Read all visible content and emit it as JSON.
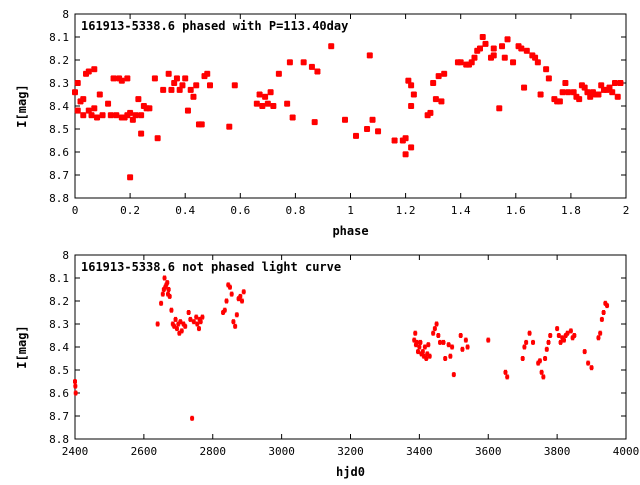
{
  "chart_data": [
    {
      "type": "scatter",
      "title": "161913-5338.6 phased with P=113.40day",
      "xlabel": "phase",
      "ylabel": "I[mag]",
      "xlim": [
        0,
        2
      ],
      "ylim": [
        8.8,
        8.0
      ],
      "y_inverted": true,
      "x_ticks": [
        "0",
        "0.2",
        "0.4",
        "0.6",
        "0.8",
        "1",
        "1.2",
        "1.4",
        "1.6",
        "1.8",
        "2"
      ],
      "y_ticks": [
        "8",
        "8.1",
        "8.2",
        "8.3",
        "8.4",
        "8.5",
        "8.6",
        "8.7",
        "8.8"
      ],
      "marker_color": "#ff0000",
      "grid": false,
      "series": [
        {
          "points": [
            [
              0.0,
              8.34
            ],
            [
              0.01,
              8.3
            ],
            [
              0.01,
              8.42
            ],
            [
              0.02,
              8.38
            ],
            [
              0.03,
              8.37
            ],
            [
              0.03,
              8.44
            ],
            [
              0.04,
              8.26
            ],
            [
              0.05,
              8.25
            ],
            [
              0.05,
              8.42
            ],
            [
              0.06,
              8.44
            ],
            [
              0.07,
              8.24
            ],
            [
              0.07,
              8.41
            ],
            [
              0.08,
              8.45
            ],
            [
              0.09,
              8.35
            ],
            [
              0.1,
              8.44
            ],
            [
              0.12,
              8.39
            ],
            [
              0.13,
              8.44
            ],
            [
              0.14,
              8.28
            ],
            [
              0.15,
              8.44
            ],
            [
              0.16,
              8.28
            ],
            [
              0.17,
              8.45
            ],
            [
              0.17,
              8.29
            ],
            [
              0.18,
              8.45
            ],
            [
              0.19,
              8.28
            ],
            [
              0.19,
              8.44
            ],
            [
              0.2,
              8.43
            ],
            [
              0.2,
              8.71
            ],
            [
              0.21,
              8.46
            ],
            [
              0.22,
              8.44
            ],
            [
              0.23,
              8.37
            ],
            [
              0.24,
              8.44
            ],
            [
              0.24,
              8.52
            ],
            [
              0.25,
              8.4
            ],
            [
              0.26,
              8.41
            ],
            [
              0.27,
              8.41
            ],
            [
              0.29,
              8.28
            ],
            [
              0.3,
              8.54
            ],
            [
              0.32,
              8.33
            ],
            [
              0.34,
              8.26
            ],
            [
              0.35,
              8.33
            ],
            [
              0.36,
              8.3
            ],
            [
              0.37,
              8.28
            ],
            [
              0.38,
              8.33
            ],
            [
              0.39,
              8.31
            ],
            [
              0.4,
              8.28
            ],
            [
              0.41,
              8.42
            ],
            [
              0.42,
              8.33
            ],
            [
              0.43,
              8.36
            ],
            [
              0.44,
              8.31
            ],
            [
              0.45,
              8.48
            ],
            [
              0.46,
              8.48
            ],
            [
              0.47,
              8.27
            ],
            [
              0.48,
              8.26
            ],
            [
              0.49,
              8.31
            ],
            [
              0.56,
              8.49
            ],
            [
              0.58,
              8.31
            ],
            [
              0.66,
              8.39
            ],
            [
              0.67,
              8.35
            ],
            [
              0.68,
              8.4
            ],
            [
              0.69,
              8.36
            ],
            [
              0.7,
              8.39
            ],
            [
              0.71,
              8.34
            ],
            [
              0.72,
              8.4
            ],
            [
              0.74,
              8.26
            ],
            [
              0.77,
              8.39
            ],
            [
              0.78,
              8.21
            ],
            [
              0.79,
              8.45
            ],
            [
              0.83,
              8.21
            ],
            [
              0.86,
              8.23
            ],
            [
              0.87,
              8.47
            ],
            [
              0.88,
              8.25
            ],
            [
              0.93,
              8.14
            ],
            [
              0.98,
              8.46
            ],
            [
              1.02,
              8.53
            ],
            [
              1.06,
              8.5
            ],
            [
              1.07,
              8.18
            ],
            [
              1.08,
              8.46
            ],
            [
              1.1,
              8.51
            ],
            [
              1.16,
              8.55
            ],
            [
              1.19,
              8.55
            ],
            [
              1.2,
              8.61
            ],
            [
              1.2,
              8.54
            ],
            [
              1.21,
              8.29
            ],
            [
              1.22,
              8.4
            ],
            [
              1.22,
              8.58
            ],
            [
              1.22,
              8.31
            ],
            [
              1.23,
              8.35
            ],
            [
              1.28,
              8.44
            ],
            [
              1.29,
              8.43
            ],
            [
              1.3,
              8.3
            ],
            [
              1.31,
              8.37
            ],
            [
              1.32,
              8.27
            ],
            [
              1.33,
              8.38
            ],
            [
              1.34,
              8.26
            ],
            [
              1.39,
              8.21
            ],
            [
              1.4,
              8.21
            ],
            [
              1.42,
              8.22
            ],
            [
              1.43,
              8.22
            ],
            [
              1.44,
              8.21
            ],
            [
              1.45,
              8.19
            ],
            [
              1.46,
              8.16
            ],
            [
              1.47,
              8.15
            ],
            [
              1.48,
              8.1
            ],
            [
              1.49,
              8.13
            ],
            [
              1.51,
              8.19
            ],
            [
              1.52,
              8.18
            ],
            [
              1.52,
              8.15
            ],
            [
              1.54,
              8.41
            ],
            [
              1.55,
              8.14
            ],
            [
              1.56,
              8.19
            ],
            [
              1.57,
              8.11
            ],
            [
              1.59,
              8.21
            ],
            [
              1.61,
              8.14
            ],
            [
              1.62,
              8.15
            ],
            [
              1.63,
              8.32
            ],
            [
              1.64,
              8.16
            ],
            [
              1.66,
              8.18
            ],
            [
              1.67,
              8.19
            ],
            [
              1.68,
              8.21
            ],
            [
              1.69,
              8.35
            ],
            [
              1.71,
              8.24
            ],
            [
              1.72,
              8.28
            ],
            [
              1.74,
              8.37
            ],
            [
              1.75,
              8.38
            ],
            [
              1.76,
              8.38
            ],
            [
              1.77,
              8.34
            ],
            [
              1.78,
              8.3
            ],
            [
              1.79,
              8.34
            ],
            [
              1.81,
              8.34
            ],
            [
              1.82,
              8.36
            ],
            [
              1.83,
              8.37
            ],
            [
              1.84,
              8.31
            ],
            [
              1.85,
              8.32
            ],
            [
              1.86,
              8.34
            ],
            [
              1.87,
              8.36
            ],
            [
              1.88,
              8.34
            ],
            [
              1.89,
              8.35
            ],
            [
              1.9,
              8.35
            ],
            [
              1.91,
              8.31
            ],
            [
              1.92,
              8.33
            ],
            [
              1.93,
              8.33
            ],
            [
              1.94,
              8.32
            ],
            [
              1.95,
              8.34
            ],
            [
              1.96,
              8.3
            ],
            [
              1.97,
              8.36
            ],
            [
              1.98,
              8.3
            ]
          ]
        }
      ]
    },
    {
      "type": "scatter",
      "title": "161913-5338.6 not phased light curve",
      "xlabel": "hjd0",
      "ylabel": "I[mag]",
      "xlim": [
        2400,
        4000
      ],
      "ylim": [
        8.8,
        8.0
      ],
      "y_inverted": true,
      "x_ticks": [
        "2400",
        "2600",
        "2800",
        "3000",
        "3200",
        "3400",
        "3600",
        "3800",
        "4000"
      ],
      "y_ticks": [
        "8",
        "8.1",
        "8.2",
        "8.3",
        "8.4",
        "8.5",
        "8.6",
        "8.7",
        "8.8"
      ],
      "marker_color": "#ff0000",
      "grid": false,
      "series": [
        {
          "points": [
            [
              2400,
              8.55
            ],
            [
              2401,
              8.57
            ],
            [
              2402,
              8.6
            ],
            [
              2640,
              8.3
            ],
            [
              2650,
              8.21
            ],
            [
              2655,
              8.17
            ],
            [
              2658,
              8.15
            ],
            [
              2660,
              8.1
            ],
            [
              2662,
              8.14
            ],
            [
              2665,
              8.13
            ],
            [
              2668,
              8.12
            ],
            [
              2670,
              8.17
            ],
            [
              2672,
              8.15
            ],
            [
              2675,
              8.18
            ],
            [
              2680,
              8.24
            ],
            [
              2684,
              8.3
            ],
            [
              2688,
              8.31
            ],
            [
              2692,
              8.28
            ],
            [
              2696,
              8.32
            ],
            [
              2700,
              8.3
            ],
            [
              2703,
              8.34
            ],
            [
              2706,
              8.29
            ],
            [
              2710,
              8.33
            ],
            [
              2715,
              8.3
            ],
            [
              2720,
              8.31
            ],
            [
              2730,
              8.25
            ],
            [
              2735,
              8.28
            ],
            [
              2740,
              8.71
            ],
            [
              2745,
              8.29
            ],
            [
              2752,
              8.27
            ],
            [
              2755,
              8.3
            ],
            [
              2760,
              8.32
            ],
            [
              2762,
              8.28
            ],
            [
              2765,
              8.29
            ],
            [
              2770,
              8.27
            ],
            [
              2830,
              8.25
            ],
            [
              2835,
              8.24
            ],
            [
              2840,
              8.2
            ],
            [
              2845,
              8.13
            ],
            [
              2850,
              8.14
            ],
            [
              2855,
              8.17
            ],
            [
              2860,
              8.29
            ],
            [
              2865,
              8.31
            ],
            [
              2870,
              8.26
            ],
            [
              2875,
              8.19
            ],
            [
              2880,
              8.18
            ],
            [
              2885,
              8.2
            ],
            [
              2890,
              8.16
            ],
            [
              3385,
              8.37
            ],
            [
              3388,
              8.34
            ],
            [
              3390,
              8.39
            ],
            [
              3393,
              8.38
            ],
            [
              3396,
              8.42
            ],
            [
              3400,
              8.4
            ],
            [
              3403,
              8.38
            ],
            [
              3406,
              8.43
            ],
            [
              3410,
              8.42
            ],
            [
              3413,
              8.44
            ],
            [
              3416,
              8.4
            ],
            [
              3420,
              8.45
            ],
            [
              3423,
              8.43
            ],
            [
              3426,
              8.39
            ],
            [
              3430,
              8.44
            ],
            [
              3440,
              8.34
            ],
            [
              3445,
              8.32
            ],
            [
              3450,
              8.3
            ],
            [
              3455,
              8.35
            ],
            [
              3460,
              8.38
            ],
            [
              3470,
              8.38
            ],
            [
              3475,
              8.45
            ],
            [
              3485,
              8.39
            ],
            [
              3490,
              8.44
            ],
            [
              3495,
              8.4
            ],
            [
              3500,
              8.52
            ],
            [
              3520,
              8.35
            ],
            [
              3525,
              8.41
            ],
            [
              3535,
              8.37
            ],
            [
              3540,
              8.4
            ],
            [
              3600,
              8.37
            ],
            [
              3650,
              8.51
            ],
            [
              3655,
              8.53
            ],
            [
              3700,
              8.45
            ],
            [
              3705,
              8.4
            ],
            [
              3710,
              8.38
            ],
            [
              3720,
              8.34
            ],
            [
              3730,
              8.38
            ],
            [
              3745,
              8.47
            ],
            [
              3750,
              8.46
            ],
            [
              3755,
              8.51
            ],
            [
              3760,
              8.53
            ],
            [
              3765,
              8.45
            ],
            [
              3770,
              8.41
            ],
            [
              3775,
              8.38
            ],
            [
              3780,
              8.35
            ],
            [
              3800,
              8.32
            ],
            [
              3805,
              8.35
            ],
            [
              3810,
              8.38
            ],
            [
              3815,
              8.36
            ],
            [
              3820,
              8.37
            ],
            [
              3825,
              8.35
            ],
            [
              3830,
              8.34
            ],
            [
              3840,
              8.33
            ],
            [
              3845,
              8.36
            ],
            [
              3850,
              8.35
            ],
            [
              3880,
              8.42
            ],
            [
              3890,
              8.47
            ],
            [
              3900,
              8.49
            ],
            [
              3920,
              8.36
            ],
            [
              3925,
              8.34
            ],
            [
              3930,
              8.28
            ],
            [
              3935,
              8.25
            ],
            [
              3940,
              8.21
            ],
            [
              3945,
              8.22
            ]
          ]
        }
      ]
    }
  ]
}
